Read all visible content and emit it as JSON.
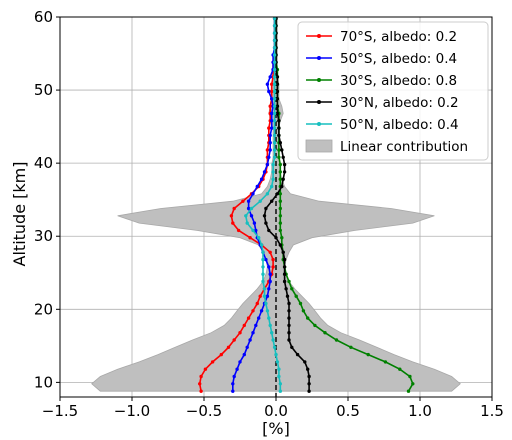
{
  "chart_data": {
    "type": "line",
    "title": "",
    "xlabel": "[%]",
    "ylabel": "Altitude [km]",
    "xlim": [
      -1.5,
      1.5
    ],
    "ylim": [
      8,
      60
    ],
    "xticks": [
      -1.5,
      -1.0,
      -0.5,
      0.0,
      0.5,
      1.0,
      1.5
    ],
    "xtick_labels": [
      "−1.5",
      "−1.0",
      "−0.5",
      "0.0",
      "0.5",
      "1.0",
      "1.5"
    ],
    "yticks": [
      10,
      20,
      30,
      40,
      50,
      60
    ],
    "ytick_labels": [
      "10",
      "20",
      "30",
      "40",
      "50",
      "60"
    ],
    "grid": true,
    "legend_position": "top-right",
    "reference_line": {
      "x": 0,
      "style": "dashed",
      "color": "#000000"
    },
    "series": [
      {
        "name": "70°S, albedo: 0.2",
        "color": "#ff0000",
        "y": [
          8.8,
          9.8,
          10.8,
          11.8,
          12.8,
          13.8,
          14.8,
          15.8,
          16.8,
          17.8,
          18.8,
          19.8,
          20.8,
          21.8,
          22.8,
          23.8,
          24.8,
          25.8,
          26.8,
          27.8,
          28.8,
          29.8,
          30.8,
          31.8,
          32.8,
          33.8,
          34.8,
          35.8,
          36.8,
          37.8,
          38.8,
          39.8,
          40.8,
          41.8,
          42.8,
          43.8,
          44.8,
          45.8,
          46.8,
          47.8,
          48.8,
          49.8,
          50.8,
          51.8,
          52.8,
          53.8,
          54.8,
          55.8,
          56.8,
          57.8,
          58.8,
          59.8
        ],
        "x": [
          -0.52,
          -0.53,
          -0.52,
          -0.49,
          -0.44,
          -0.38,
          -0.33,
          -0.29,
          -0.25,
          -0.22,
          -0.19,
          -0.16,
          -0.13,
          -0.11,
          -0.08,
          -0.05,
          -0.03,
          -0.02,
          -0.02,
          -0.04,
          -0.1,
          -0.18,
          -0.26,
          -0.3,
          -0.31,
          -0.29,
          -0.23,
          -0.17,
          -0.12,
          -0.09,
          -0.07,
          -0.06,
          -0.06,
          -0.06,
          -0.05,
          -0.05,
          -0.05,
          -0.04,
          -0.04,
          -0.04,
          -0.03,
          -0.03,
          -0.03,
          -0.02,
          -0.02,
          -0.02,
          -0.01,
          -0.01,
          -0.01,
          -0.01,
          -0.01,
          -0.01
        ]
      },
      {
        "name": "50°S, albedo: 0.4",
        "color": "#0000ff",
        "y": [
          8.8,
          9.8,
          10.8,
          11.8,
          12.8,
          13.8,
          14.8,
          15.8,
          16.8,
          17.8,
          18.8,
          19.8,
          20.8,
          21.8,
          22.8,
          23.8,
          24.8,
          25.8,
          26.8,
          27.8,
          28.8,
          29.8,
          30.8,
          31.8,
          32.8,
          33.8,
          34.8,
          35.8,
          36.8,
          37.8,
          38.8,
          39.8,
          40.8,
          41.8,
          42.8,
          43.8,
          44.8,
          45.8,
          46.8,
          47.8,
          48.8,
          49.8,
          50.8,
          51.8,
          52.8,
          53.8,
          54.8,
          55.8,
          56.8,
          57.8,
          58.8,
          59.8
        ],
        "x": [
          -0.3,
          -0.3,
          -0.29,
          -0.27,
          -0.25,
          -0.22,
          -0.2,
          -0.18,
          -0.16,
          -0.14,
          -0.12,
          -0.1,
          -0.08,
          -0.06,
          -0.05,
          -0.04,
          -0.04,
          -0.05,
          -0.07,
          -0.09,
          -0.11,
          -0.13,
          -0.14,
          -0.15,
          -0.17,
          -0.19,
          -0.19,
          -0.16,
          -0.13,
          -0.1,
          -0.08,
          -0.06,
          -0.05,
          -0.04,
          -0.04,
          -0.04,
          -0.03,
          -0.03,
          -0.03,
          -0.02,
          -0.03,
          -0.05,
          -0.06,
          -0.04,
          -0.02,
          -0.02,
          -0.02,
          -0.01,
          -0.01,
          -0.01,
          -0.01,
          -0.01
        ]
      },
      {
        "name": "30°S, albedo: 0.8",
        "color": "#008000",
        "y": [
          8.8,
          9.8,
          10.8,
          11.8,
          12.8,
          13.8,
          14.8,
          15.8,
          16.8,
          17.8,
          18.8,
          19.8,
          20.8,
          21.8,
          22.8,
          23.8,
          24.8,
          25.8,
          26.8,
          27.8,
          28.8,
          29.8,
          30.8,
          31.8,
          32.8,
          33.8,
          34.8,
          35.8,
          36.8,
          37.8,
          38.8,
          39.8,
          40.8,
          41.8,
          42.8,
          43.8,
          44.8,
          45.8,
          46.8,
          47.8,
          48.8,
          49.8,
          50.8,
          51.8,
          52.8,
          53.8,
          54.8,
          55.8,
          56.8,
          57.8,
          58.8,
          59.8
        ],
        "x": [
          0.92,
          0.95,
          0.93,
          0.86,
          0.76,
          0.64,
          0.52,
          0.42,
          0.34,
          0.27,
          0.22,
          0.19,
          0.17,
          0.14,
          0.11,
          0.09,
          0.07,
          0.06,
          0.05,
          0.05,
          0.04,
          0.04,
          0.03,
          0.03,
          0.03,
          0.03,
          0.03,
          0.03,
          0.03,
          0.03,
          0.03,
          0.03,
          0.02,
          0.02,
          0.02,
          0.02,
          0.02,
          0.02,
          0.02,
          0.01,
          0.01,
          0.01,
          0.01,
          0.01,
          0.01,
          0.0,
          0.0,
          0.0,
          0.0,
          0.0,
          0.0,
          0.0
        ]
      },
      {
        "name": "30°N, albedo: 0.2",
        "color": "#000000",
        "y": [
          8.8,
          9.8,
          10.8,
          11.8,
          12.8,
          13.8,
          14.8,
          15.8,
          16.8,
          17.8,
          18.8,
          19.8,
          20.8,
          21.8,
          22.8,
          23.8,
          24.8,
          25.8,
          26.8,
          27.8,
          28.8,
          29.8,
          30.8,
          31.8,
          32.8,
          33.8,
          34.8,
          35.8,
          36.8,
          37.8,
          38.8,
          39.8,
          40.8,
          41.8,
          42.8,
          43.8,
          44.8,
          45.8,
          46.8,
          47.8,
          48.8,
          49.8,
          50.8,
          51.8,
          52.8,
          53.8,
          54.8,
          55.8,
          56.8,
          57.8,
          58.8,
          59.8
        ],
        "x": [
          0.23,
          0.23,
          0.23,
          0.22,
          0.2,
          0.15,
          0.11,
          0.09,
          0.09,
          0.09,
          0.09,
          0.09,
          0.09,
          0.08,
          0.07,
          0.06,
          0.06,
          0.06,
          0.06,
          0.05,
          0.03,
          0.0,
          -0.05,
          -0.07,
          -0.08,
          -0.07,
          -0.03,
          0.01,
          0.04,
          0.05,
          0.06,
          0.06,
          0.05,
          0.04,
          0.03,
          0.02,
          0.02,
          0.02,
          0.01,
          0.01,
          0.01,
          0.01,
          0.01,
          0.01,
          0.0,
          0.0,
          0.0,
          0.0,
          0.0,
          0.0,
          0.0,
          0.0
        ]
      },
      {
        "name": "50°N, albedo: 0.4",
        "color": "#17bfbf",
        "y": [
          8.8,
          9.8,
          10.8,
          11.8,
          12.8,
          13.8,
          14.8,
          15.8,
          16.8,
          17.8,
          18.8,
          19.8,
          20.8,
          21.8,
          22.8,
          23.8,
          24.8,
          25.8,
          26.8,
          27.8,
          28.8,
          29.8,
          30.8,
          31.8,
          32.8,
          33.8,
          34.8,
          35.8,
          36.8,
          37.8,
          38.8,
          39.8,
          40.8,
          41.8,
          42.8,
          43.8,
          44.8,
          45.8,
          46.8,
          47.8,
          48.8,
          49.8,
          50.8,
          51.8,
          52.8,
          53.8,
          54.8,
          55.8,
          56.8,
          57.8,
          58.8,
          59.8
        ],
        "x": [
          0.03,
          0.03,
          0.02,
          0.02,
          0.01,
          0.0,
          -0.01,
          -0.02,
          -0.03,
          -0.04,
          -0.05,
          -0.06,
          -0.07,
          -0.08,
          -0.08,
          -0.09,
          -0.09,
          -0.09,
          -0.09,
          -0.09,
          -0.1,
          -0.12,
          -0.16,
          -0.2,
          -0.21,
          -0.17,
          -0.11,
          -0.06,
          -0.03,
          -0.02,
          -0.02,
          -0.02,
          -0.01,
          -0.01,
          -0.01,
          -0.01,
          -0.01,
          -0.01,
          -0.01,
          -0.01,
          -0.01,
          -0.01,
          -0.01,
          -0.01,
          -0.01,
          -0.01,
          -0.01,
          -0.01,
          -0.01,
          -0.01,
          -0.01,
          -0.01
        ]
      }
    ],
    "band": {
      "name": "Linear contribution",
      "color": "#bfbfbf",
      "edge_color": "#a8a8a8",
      "y": [
        8.8,
        9.8,
        10.8,
        11.8,
        12.8,
        13.8,
        14.8,
        15.8,
        16.8,
        17.8,
        18.8,
        19.8,
        20.8,
        21.8,
        22.8,
        23.8,
        24.8,
        25.8,
        26.8,
        27.8,
        28.8,
        29.8,
        30.8,
        31.8,
        32.8,
        33.8,
        34.8,
        35.8,
        36.8,
        37.8,
        38.8,
        39.8,
        40.8,
        41.8,
        42.8,
        43.8,
        44.8,
        45.8,
        46.8,
        47.8,
        48.8,
        49.8,
        50.8,
        51.8,
        52.8,
        53.8,
        54.8,
        55.8,
        56.8,
        57.8,
        58.8,
        59.8
      ],
      "half_width": [
        1.22,
        1.28,
        1.22,
        1.1,
        0.95,
        0.82,
        0.7,
        0.58,
        0.45,
        0.36,
        0.31,
        0.27,
        0.23,
        0.18,
        0.13,
        0.09,
        0.07,
        0.06,
        0.07,
        0.09,
        0.12,
        0.25,
        0.55,
        0.95,
        1.1,
        0.8,
        0.3,
        0.1,
        0.06,
        0.04,
        0.03,
        0.03,
        0.02,
        0.02,
        0.02,
        0.02,
        0.02,
        0.03,
        0.05,
        0.04,
        0.02,
        0.02,
        0.02,
        0.01,
        0.01,
        0.01,
        0.01,
        0.01,
        0.01,
        0.01,
        0.01,
        0.01
      ]
    }
  }
}
